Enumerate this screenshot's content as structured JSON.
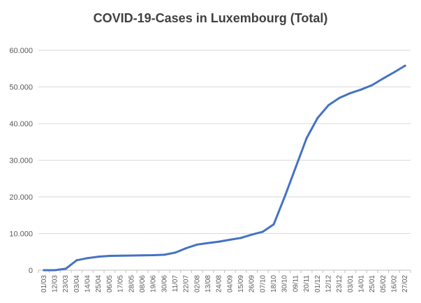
{
  "chart_data": {
    "type": "line",
    "title": "COVID-19-Cases in Luxembourg (Total)",
    "xlabel": "",
    "ylabel": "",
    "ylim": [
      0,
      60000
    ],
    "y_ticks": [
      0,
      10000,
      20000,
      30000,
      40000,
      50000,
      60000
    ],
    "y_tick_labels": [
      "0",
      "10.000",
      "20.000",
      "30.000",
      "40.000",
      "50.000",
      "60.000"
    ],
    "grid": "horizontal",
    "legend": "none",
    "colors": {
      "line": "#4472C4",
      "grid": "#d9d9d9",
      "axis": "#bfbfbf",
      "text": "#595959",
      "title": "#404040"
    },
    "x_tick_labels": [
      "01/03",
      "12/03",
      "23/03",
      "03/04",
      "14/04",
      "25/04",
      "06/05",
      "17/05",
      "28/05",
      "08/06",
      "19/06",
      "30/06",
      "11/07",
      "22/07",
      "02/08",
      "13/08",
      "24/08",
      "04/09",
      "15/09",
      "26/09",
      "07/10",
      "18/10",
      "30/10",
      "09/11",
      "20/11",
      "01/12",
      "12/12",
      "23/12",
      "03/01",
      "14/01",
      "25/01",
      "05/02",
      "16/02",
      "27/02"
    ],
    "series": [
      {
        "values": [
          0,
          0,
          400,
          2700,
          3300,
          3700,
          3900,
          3950,
          4000,
          4050,
          4100,
          4200,
          4800,
          6000,
          7000,
          7400,
          7800,
          8300,
          8800,
          9700,
          10500,
          12500,
          20000,
          28000,
          36000,
          41500,
          45000,
          47000,
          48300,
          49300,
          50500,
          52300,
          54000,
          55800
        ]
      }
    ]
  }
}
